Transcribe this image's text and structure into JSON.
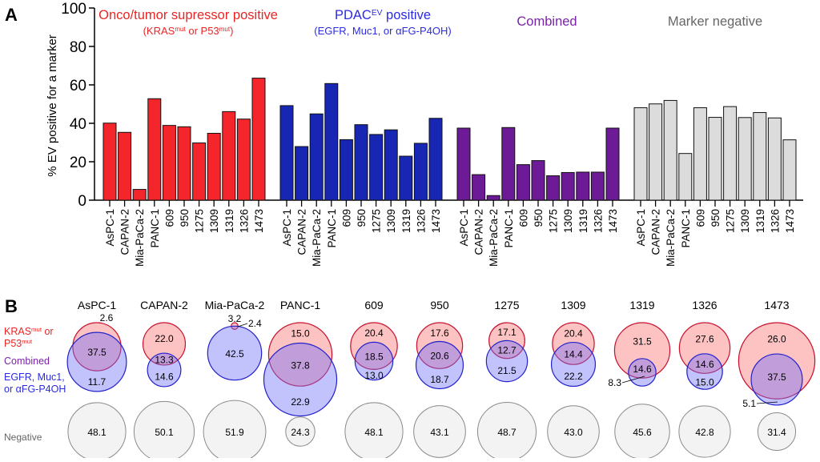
{
  "panel_labels": {
    "a": "A",
    "b": "B"
  },
  "colors": {
    "onco": "#f4262c",
    "pdac": "#1727b4",
    "combined": "#6c1a96",
    "negative": "#dcdcdc",
    "onco_title": "#ea2424",
    "pdac_title": "#2b2be0",
    "combined_title": "#7a22a8",
    "negative_title": "#666666"
  },
  "chart_data": [
    {
      "type": "bar",
      "ylabel": "% EV positive for a marker",
      "ylim": [
        0,
        100
      ],
      "yticks": [
        0,
        20,
        40,
        60,
        80,
        100
      ],
      "grid": false,
      "categories": [
        "AsPC-1",
        "CAPAN-2",
        "Mia-PaCa-2",
        "PANC-1",
        "609",
        "950",
        "1275",
        "1309",
        "1319",
        "1326",
        "1473"
      ],
      "series": [
        {
          "name": "Onco/tumor supressor positive",
          "subtitle_parts": [
            "(KRAS",
            "mut",
            " or P53",
            "mut",
            ")"
          ],
          "color_key": "onco",
          "values": [
            40.1,
            35.3,
            5.6,
            52.8,
            38.9,
            38.2,
            29.8,
            34.8,
            46.1,
            42.2,
            63.5
          ]
        },
        {
          "name_parts": [
            "PDAC",
            "EV",
            " positive"
          ],
          "subtitle": "(EGFR, Muc1, or αFG-P4OH)",
          "color_key": "pdac",
          "values": [
            49.2,
            27.9,
            44.9,
            60.7,
            31.5,
            39.3,
            34.2,
            36.6,
            22.9,
            29.6,
            42.6
          ]
        },
        {
          "name": "Combined",
          "color_key": "combined",
          "values": [
            37.5,
            13.3,
            2.4,
            37.8,
            18.5,
            20.6,
            12.7,
            14.4,
            14.6,
            14.6,
            37.5
          ]
        },
        {
          "name": "Marker negative",
          "color_key": "negative",
          "values": [
            48.1,
            50.1,
            51.9,
            24.3,
            48.1,
            43.1,
            48.7,
            43.0,
            45.6,
            42.8,
            31.4
          ]
        }
      ]
    },
    {
      "type": "venn",
      "row_labels": {
        "onco": [
          "KRAS",
          "mut",
          " or",
          "P53",
          "mut"
        ],
        "combined": "Combined",
        "pdac": [
          "EGFR, Muc1,",
          "or αFG-P4OH"
        ],
        "negative": "Negative"
      },
      "cell_lines": [
        {
          "name": "AsPC-1",
          "onco_only": "2.6",
          "combined": "37.5",
          "pdac_only": "11.7",
          "negative": "48.1"
        },
        {
          "name": "CAPAN-2",
          "onco_only": "22.0",
          "combined": "13.3",
          "pdac_only": "14.6",
          "negative": "50.1"
        },
        {
          "name": "Mia-PaCa-2",
          "onco_only": "3.2",
          "combined": "2.4",
          "pdac_only": "42.5",
          "negative": "51.9"
        },
        {
          "name": "PANC-1",
          "onco_only": "15.0",
          "combined": "37.8",
          "pdac_only": "22.9",
          "negative": "24.3"
        },
        {
          "name": "609",
          "onco_only": "20.4",
          "combined": "18.5",
          "pdac_only": "13.0",
          "negative": "48.1"
        },
        {
          "name": "950",
          "onco_only": "17.6",
          "combined": "20.6",
          "pdac_only": "18.7",
          "negative": "43.1"
        },
        {
          "name": "1275",
          "onco_only": "17.1",
          "combined": "12.7",
          "pdac_only": "21.5",
          "negative": "48.7"
        },
        {
          "name": "1309",
          "onco_only": "20.4",
          "combined": "14.4",
          "pdac_only": "22.2",
          "negative": "43.0"
        },
        {
          "name": "1319",
          "onco_only": "31.5",
          "combined": "14.6",
          "pdac_only": "8.3",
          "negative": "45.6"
        },
        {
          "name": "1326",
          "onco_only": "27.6",
          "combined": "14.6",
          "pdac_only": "15.0",
          "negative": "42.8"
        },
        {
          "name": "1473",
          "onco_only": "26.0",
          "combined": "37.5",
          "pdac_only": "5.1",
          "negative": "31.4"
        }
      ]
    }
  ]
}
